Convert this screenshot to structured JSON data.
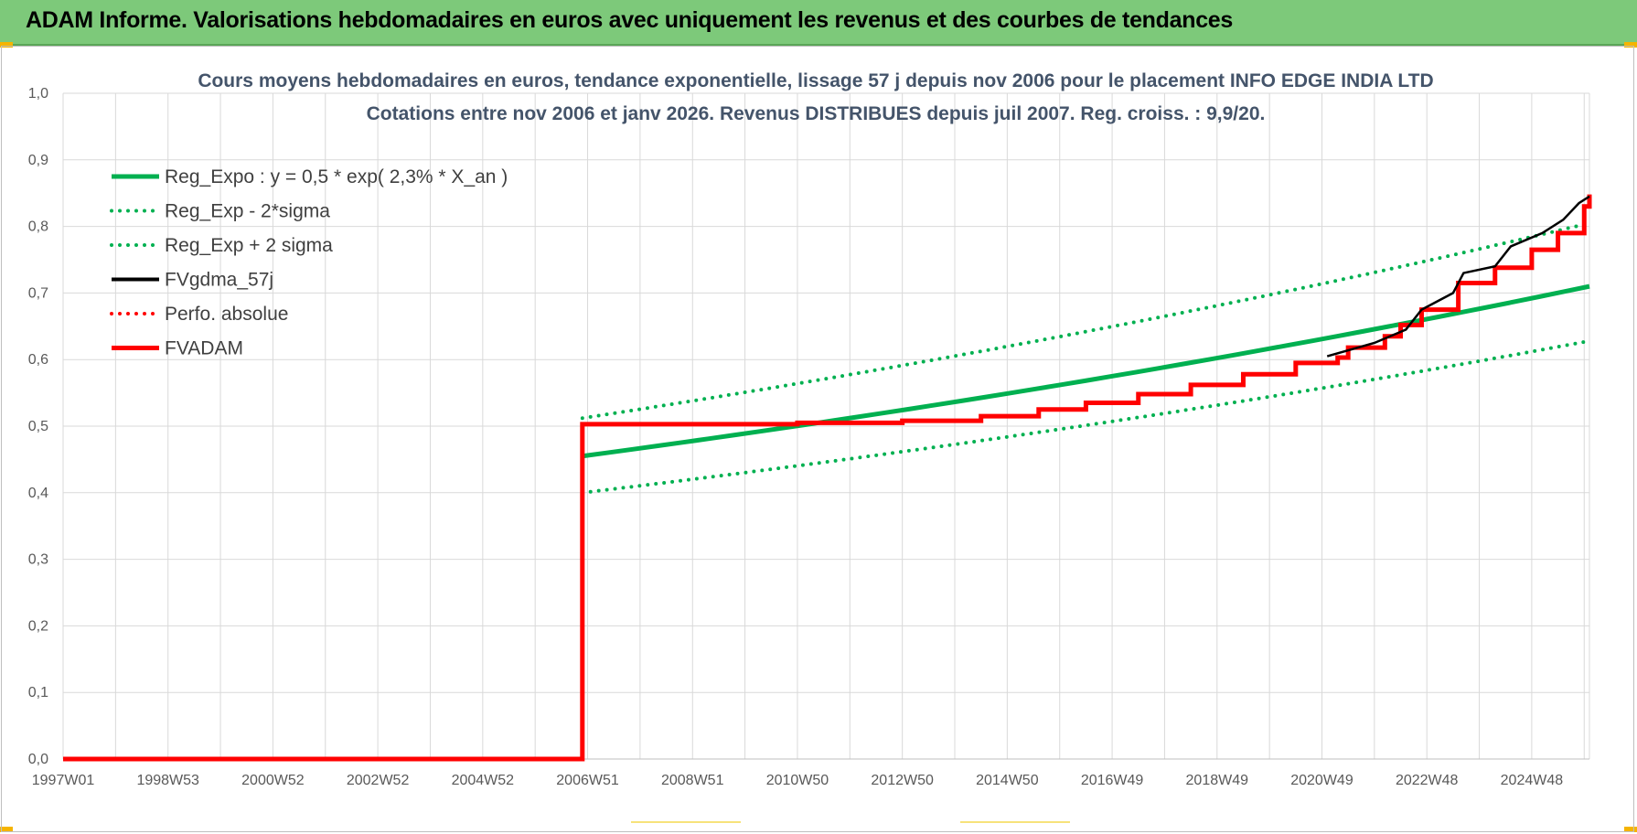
{
  "header": {
    "title": "ADAM Informe. Valorisations hebdomadaires en euros avec uniquement les revenus et des courbes de tendances"
  },
  "colors": {
    "header_bg": "#7dc97a",
    "accent_yellow": "#f5b400",
    "green": "#00b050",
    "black": "#000000",
    "red": "#ff0000",
    "grid": "#d9d9d9"
  },
  "chart_data": {
    "type": "line",
    "title": "Cours moyens hebdomadaires en euros, tendance exponentielle, lissage 57 j depuis nov 2006  pour le placement INFO EDGE INDIA LTD",
    "subtitle": "Cotations entre nov 2006 et janv 2026. Revenus DISTRIBUES depuis juil 2007. Reg. croiss. : 9,9/20.",
    "xlabel": "",
    "ylabel": "",
    "ylim": [
      0,
      1.0
    ],
    "y_ticks": [
      "0,0",
      "0,1",
      "0,2",
      "0,3",
      "0,4",
      "0,5",
      "0,6",
      "0,7",
      "0,8",
      "0,9",
      "1,0"
    ],
    "x_range": [
      1997.0,
      2026.1
    ],
    "x_ticks": [
      "1997W01",
      "1998W53",
      "2000W52",
      "2002W52",
      "2004W52",
      "2006W51",
      "2008W51",
      "2010W50",
      "2012W50",
      "2014W50",
      "2016W49",
      "2018W49",
      "2020W49",
      "2022W48",
      "2024W48"
    ],
    "x_tick_years": [
      1997.0,
      1999.0,
      2001.0,
      2003.0,
      2005.0,
      2007.0,
      2009.0,
      2011.0,
      2013.0,
      2015.0,
      2017.0,
      2019.0,
      2021.0,
      2023.0,
      2025.0
    ],
    "grid": true,
    "legend_position": "top-left",
    "series": [
      {
        "name": "Reg_Expo : y = 0,5 * exp( 2,3% *  X_an )",
        "style": "solid",
        "color": "#00b050",
        "x": [
          2006.9,
          2026.1
        ],
        "y": [
          0.455,
          0.71
        ]
      },
      {
        "name": "Reg_Exp - 2*sigma",
        "style": "dotted",
        "color": "#00b050",
        "x": [
          2006.9,
          2026.1
        ],
        "y": [
          0.4,
          0.628
        ]
      },
      {
        "name": "Reg_Exp + 2 sigma",
        "style": "dotted",
        "color": "#00b050",
        "x": [
          2006.9,
          2026.1
        ],
        "y": [
          0.512,
          0.805
        ]
      },
      {
        "name": "FVgdma_57j",
        "style": "solid-thin",
        "color": "#000000",
        "x": [
          2021.1,
          2022.0,
          2022.6,
          2022.9,
          2023.5,
          2023.7,
          2024.3,
          2024.6,
          2025.2,
          2025.6,
          2025.9,
          2026.1
        ],
        "y": [
          0.605,
          0.625,
          0.645,
          0.675,
          0.7,
          0.73,
          0.74,
          0.77,
          0.79,
          0.81,
          0.835,
          0.845
        ]
      },
      {
        "name": "Perfo. absolue",
        "style": "dotted",
        "color": "#ff0000",
        "x": [],
        "y": []
      },
      {
        "name": "FVADAM",
        "style": "solid",
        "color": "#ff0000",
        "x": [
          1997.0,
          2006.85,
          2006.9,
          2011.0,
          2013.0,
          2014.5,
          2015.6,
          2016.5,
          2017.5,
          2018.5,
          2019.5,
          2020.5,
          2021.3,
          2021.5,
          2022.2,
          2022.5,
          2022.9,
          2023.4,
          2023.6,
          2024.3,
          2024.6,
          2025.0,
          2025.5,
          2025.7,
          2026.0,
          2026.1
        ],
        "y": [
          0.0,
          0.0,
          0.503,
          0.505,
          0.508,
          0.515,
          0.525,
          0.535,
          0.548,
          0.562,
          0.578,
          0.595,
          0.603,
          0.618,
          0.635,
          0.652,
          0.675,
          0.675,
          0.715,
          0.738,
          0.738,
          0.765,
          0.79,
          0.79,
          0.83,
          0.848
        ]
      }
    ]
  }
}
